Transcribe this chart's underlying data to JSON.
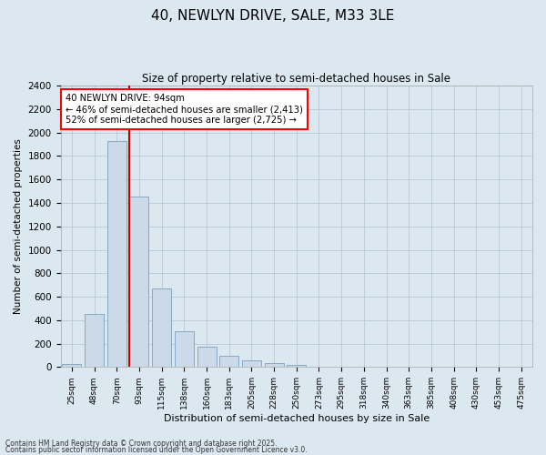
{
  "title": "40, NEWLYN DRIVE, SALE, M33 3LE",
  "subtitle": "Size of property relative to semi-detached houses in Sale",
  "xlabel": "Distribution of semi-detached houses by size in Sale",
  "ylabel": "Number of semi-detached properties",
  "categories": [
    "25sqm",
    "48sqm",
    "70sqm",
    "93sqm",
    "115sqm",
    "138sqm",
    "160sqm",
    "183sqm",
    "205sqm",
    "228sqm",
    "250sqm",
    "273sqm",
    "295sqm",
    "318sqm",
    "340sqm",
    "363sqm",
    "385sqm",
    "408sqm",
    "430sqm",
    "453sqm",
    "475sqm"
  ],
  "values": [
    25,
    450,
    1930,
    1455,
    670,
    305,
    175,
    95,
    60,
    35,
    20,
    0,
    0,
    0,
    0,
    0,
    0,
    0,
    0,
    0,
    0
  ],
  "bar_color": "#ccd9e8",
  "bar_edge_color": "#7aa0be",
  "grid_color": "#b8c8d8",
  "background_color": "#dce8f0",
  "annotation_text": "40 NEWLYN DRIVE: 94sqm\n← 46% of semi-detached houses are smaller (2,413)\n52% of semi-detached houses are larger (2,725) →",
  "marker_index": 3,
  "marker_color": "#cc0000",
  "ylim": [
    0,
    2400
  ],
  "yticks": [
    0,
    200,
    400,
    600,
    800,
    1000,
    1200,
    1400,
    1600,
    1800,
    2000,
    2200,
    2400
  ],
  "footnote1": "Contains HM Land Registry data © Crown copyright and database right 2025.",
  "footnote2": "Contains public sector information licensed under the Open Government Licence v3.0."
}
